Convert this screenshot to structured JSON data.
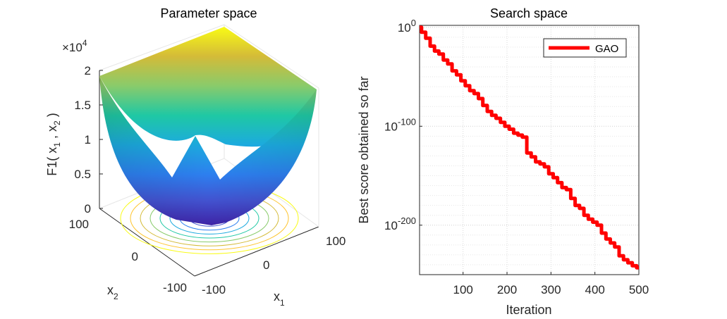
{
  "chart_data": [
    {
      "type": "surface3d",
      "title": "Parameter space",
      "function": "x1^2 + x2^2",
      "xlabel": "x",
      "xlabel_sub": "1",
      "ylabel": "x",
      "ylabel_sub": "2",
      "zlabel": "F1( x  , x  )",
      "zlabel_parts": [
        "F1( x",
        "1",
        " , x",
        "2",
        " )"
      ],
      "xlim": [
        -100,
        100
      ],
      "ylim": [
        -100,
        100
      ],
      "zlim": [
        0,
        20000
      ],
      "x_ticks": [
        "-100",
        "0",
        "100"
      ],
      "y_ticks": [
        "-100",
        "0",
        "100"
      ],
      "z_ticks": [
        "0",
        "0.5",
        "1",
        "1.5",
        "2"
      ],
      "z_multiplier": "×10",
      "z_multiplier_exp": "4",
      "contours": "base-plane",
      "colormap": "parula"
    },
    {
      "type": "line",
      "title": "Search space",
      "xlabel": "Iteration",
      "ylabel": "Best score obtained so far",
      "xlim": [
        1,
        500
      ],
      "ylim_log10": [
        -250,
        2
      ],
      "yscale": "log",
      "x_ticks": [
        "100",
        "200",
        "300",
        "400",
        "500"
      ],
      "y_ticks": [
        {
          "base": "10",
          "exp": "0",
          "log10": 0
        },
        {
          "base": "10",
          "exp": "-100",
          "log10": -100
        },
        {
          "base": "10",
          "exp": "-200",
          "log10": -200
        }
      ],
      "grid": true,
      "legend_position": "top-right",
      "series": [
        {
          "name": "GAO",
          "color": "#ff0000",
          "x": [
            1,
            10,
            20,
            30,
            40,
            50,
            60,
            70,
            80,
            90,
            100,
            110,
            120,
            130,
            140,
            150,
            160,
            170,
            180,
            190,
            200,
            210,
            220,
            230,
            240,
            250,
            260,
            270,
            280,
            290,
            300,
            310,
            320,
            330,
            340,
            350,
            360,
            370,
            380,
            390,
            400,
            410,
            420,
            430,
            440,
            450,
            460,
            470,
            480,
            490,
            500
          ],
          "log10_y": [
            0,
            -5,
            -11,
            -19,
            -24,
            -27,
            -33,
            -37,
            -44,
            -48,
            -54,
            -59,
            -64,
            -67,
            -72,
            -79,
            -85,
            -89,
            -92,
            -96,
            -100,
            -103,
            -107,
            -109,
            -111,
            -127,
            -131,
            -136,
            -138,
            -141,
            -148,
            -152,
            -157,
            -162,
            -164,
            -173,
            -180,
            -183,
            -190,
            -194,
            -197,
            -200,
            -208,
            -214,
            -218,
            -222,
            -231,
            -235,
            -238,
            -241,
            -243
          ]
        }
      ]
    }
  ],
  "colors": {
    "axis": "#262626",
    "grid": "#d9d9d9",
    "line": "#ff0000",
    "contour_palette": [
      "#3e26a8",
      "#4253d0",
      "#2d7fef",
      "#1caadf",
      "#1fc8a4",
      "#89cb6b",
      "#d4bb38",
      "#fdc52f",
      "#f9fb15"
    ]
  }
}
